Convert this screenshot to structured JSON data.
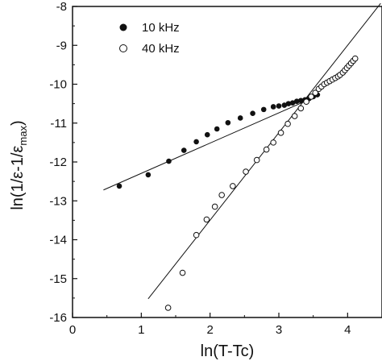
{
  "chart_data": {
    "type": "scatter",
    "title": "",
    "xlabel": "ln(T-Tc)",
    "ylabel_parts": {
      "main": "ln(1/ε-1/ε",
      "sub": "max",
      "close": ")"
    },
    "xlim": [
      0,
      4.5
    ],
    "ylim": [
      -16,
      -8
    ],
    "xticks": [
      0,
      1,
      2,
      3,
      4
    ],
    "yticks": [
      -16,
      -15,
      -14,
      -13,
      -12,
      -11,
      -10,
      -9,
      -8
    ],
    "legend_position": "top-left",
    "series": [
      {
        "name": "10 kHz",
        "marker": "filled-circle",
        "points": [
          [
            0.68,
            -12.62
          ],
          [
            1.1,
            -12.33
          ],
          [
            1.4,
            -11.98
          ],
          [
            1.62,
            -11.7
          ],
          [
            1.8,
            -11.48
          ],
          [
            1.96,
            -11.3
          ],
          [
            2.1,
            -11.15
          ],
          [
            2.26,
            -10.99
          ],
          [
            2.44,
            -10.87
          ],
          [
            2.62,
            -10.75
          ],
          [
            2.78,
            -10.65
          ],
          [
            2.92,
            -10.58
          ],
          [
            3.0,
            -10.56
          ],
          [
            3.08,
            -10.54
          ],
          [
            3.14,
            -10.5
          ],
          [
            3.2,
            -10.48
          ],
          [
            3.26,
            -10.44
          ],
          [
            3.32,
            -10.42
          ],
          [
            3.38,
            -10.4
          ],
          [
            3.44,
            -10.37
          ],
          [
            3.5,
            -10.32
          ],
          [
            3.56,
            -10.27
          ]
        ]
      },
      {
        "name": "40 kHz",
        "marker": "open-circle",
        "points": [
          [
            1.39,
            -15.75
          ],
          [
            1.6,
            -14.85
          ],
          [
            1.8,
            -13.88
          ],
          [
            1.95,
            -13.48
          ],
          [
            2.07,
            -13.15
          ],
          [
            2.17,
            -12.85
          ],
          [
            2.33,
            -12.62
          ],
          [
            2.52,
            -12.25
          ],
          [
            2.68,
            -11.95
          ],
          [
            2.82,
            -11.68
          ],
          [
            2.92,
            -11.5
          ],
          [
            3.03,
            -11.25
          ],
          [
            3.13,
            -11.02
          ],
          [
            3.23,
            -10.82
          ],
          [
            3.32,
            -10.62
          ],
          [
            3.4,
            -10.45
          ],
          [
            3.47,
            -10.32
          ],
          [
            3.53,
            -10.22
          ],
          [
            3.58,
            -10.12
          ],
          [
            3.62,
            -10.06
          ],
          [
            3.66,
            -10.0
          ],
          [
            3.7,
            -9.96
          ],
          [
            3.74,
            -9.92
          ],
          [
            3.78,
            -9.88
          ],
          [
            3.82,
            -9.84
          ],
          [
            3.86,
            -9.8
          ],
          [
            3.89,
            -9.76
          ],
          [
            3.93,
            -9.7
          ],
          [
            3.96,
            -9.64
          ],
          [
            3.99,
            -9.58
          ],
          [
            4.02,
            -9.52
          ],
          [
            4.05,
            -9.46
          ],
          [
            4.08,
            -9.4
          ],
          [
            4.11,
            -9.34
          ]
        ]
      }
    ],
    "fit_lines": [
      {
        "series": "10 kHz",
        "from": [
          0.45,
          -12.72
        ],
        "to": [
          3.6,
          -10.27
        ]
      },
      {
        "series": "40 kHz",
        "from": [
          1.1,
          -15.52
        ],
        "to": [
          4.48,
          -7.92
        ]
      }
    ]
  }
}
